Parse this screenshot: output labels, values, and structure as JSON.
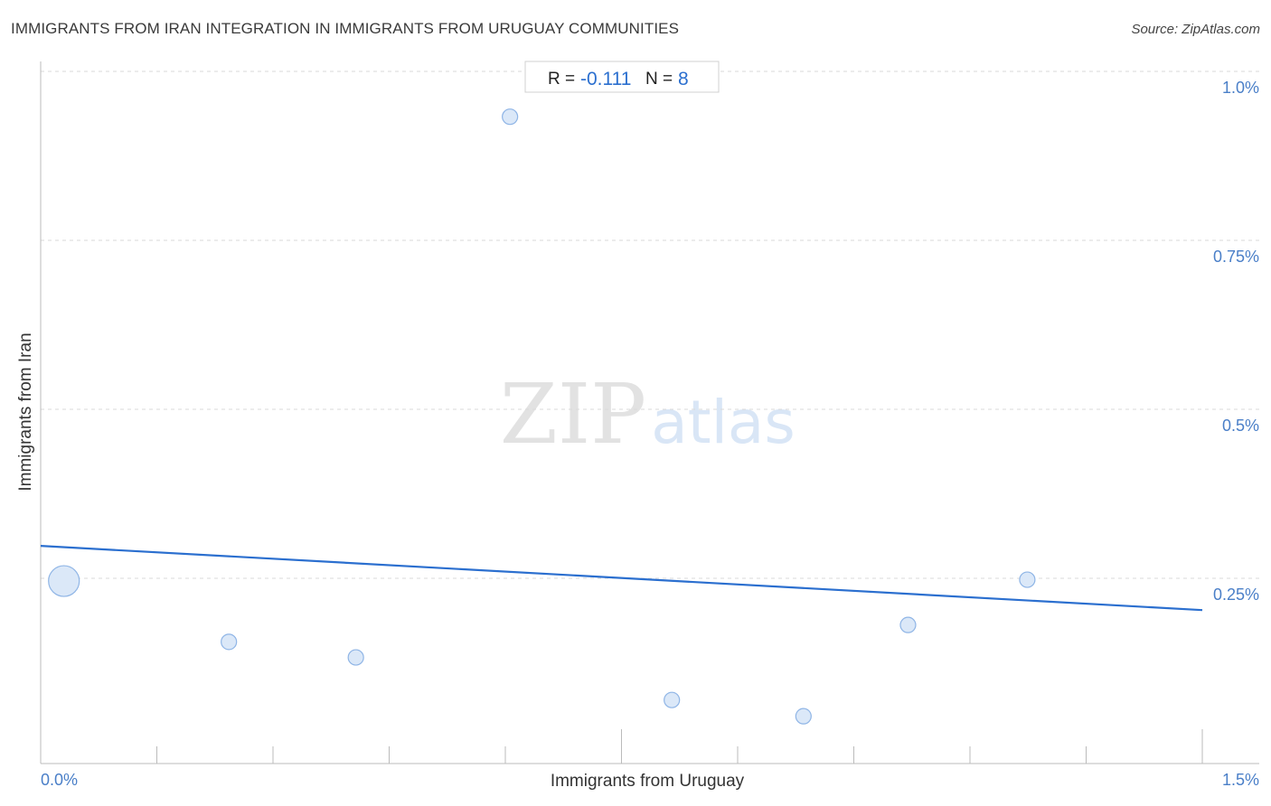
{
  "header": {
    "title": "IMMIGRANTS FROM IRAN INTEGRATION IN IMMIGRANTS FROM URUGUAY COMMUNITIES",
    "source": "Source: ZipAtlas.com"
  },
  "stats": {
    "r_label": "R =",
    "r_value": "-0.111",
    "n_label": "N =",
    "n_value": "8"
  },
  "watermark": {
    "zip": "ZIP",
    "atlas": "atlas"
  },
  "colors": {
    "accent": "#2b6fcf",
    "point_fill": "#dbe8f8",
    "point_stroke": "#8fb5e6",
    "grid": "#d9d9d9",
    "axis": "#bbbbbb"
  },
  "chart_data": {
    "type": "scatter",
    "title": "IMMIGRANTS FROM IRAN INTEGRATION IN IMMIGRANTS FROM URUGUAY COMMUNITIES",
    "xlabel": "Immigrants from Uruguay",
    "ylabel": "Immigrants from Iran",
    "xlim": [
      0,
      1.5
    ],
    "ylim": [
      0,
      1.0
    ],
    "x_tick_labels": [
      "0.0%",
      "1.5%"
    ],
    "y_ticks": [
      1.0,
      0.75,
      0.5,
      0.25
    ],
    "y_tick_labels": [
      "1.0%",
      "0.75%",
      "0.5%",
      "0.25%"
    ],
    "grid": "horizontal dashed",
    "points": [
      {
        "x": 0.03,
        "y": 0.27,
        "size": "large"
      },
      {
        "x": 0.243,
        "y": 0.18,
        "size": "small"
      },
      {
        "x": 0.407,
        "y": 0.157,
        "size": "small"
      },
      {
        "x": 0.606,
        "y": 0.957,
        "size": "small"
      },
      {
        "x": 0.815,
        "y": 0.094,
        "size": "small"
      },
      {
        "x": 0.985,
        "y": 0.07,
        "size": "small"
      },
      {
        "x": 1.12,
        "y": 0.205,
        "size": "small"
      },
      {
        "x": 1.274,
        "y": 0.272,
        "size": "small"
      }
    ],
    "trendline": {
      "x": [
        0,
        1.5
      ],
      "y": [
        0.322,
        0.227
      ]
    },
    "R": -0.111,
    "N": 8
  }
}
